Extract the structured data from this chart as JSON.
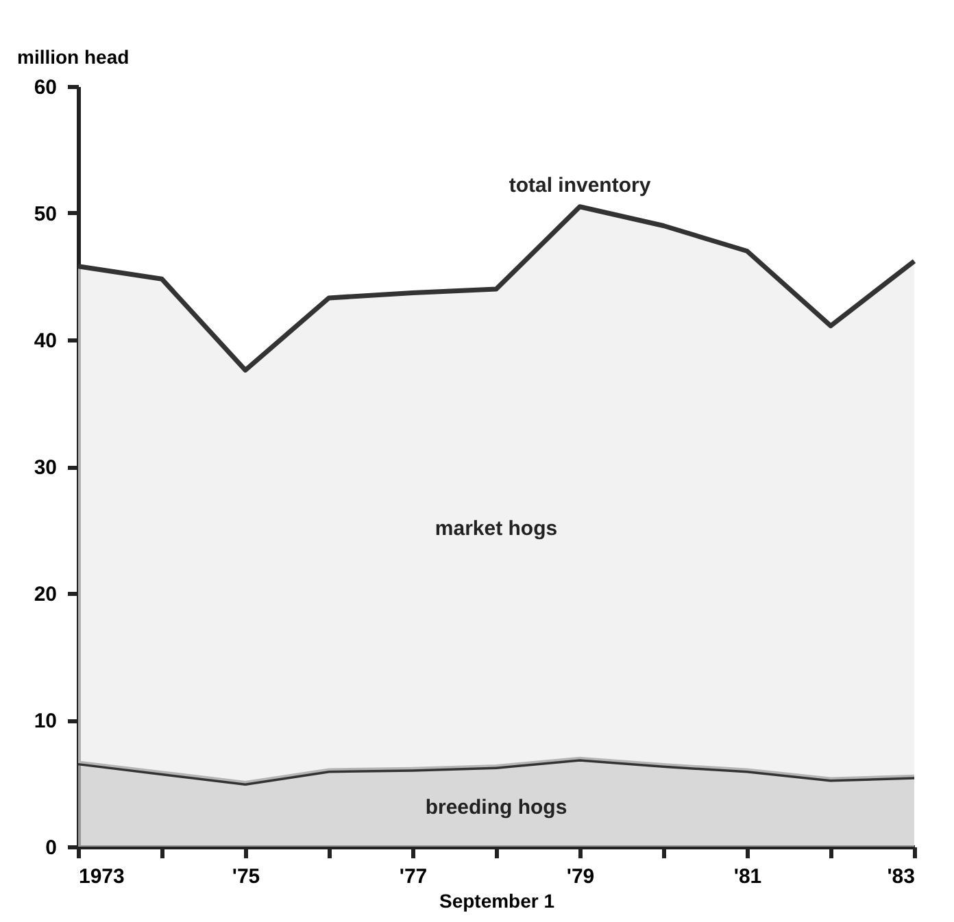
{
  "chart_data": {
    "type": "area",
    "stacked": true,
    "xlabel": "September 1",
    "ylabel": "million head",
    "x": [
      1973,
      1974,
      1975,
      1976,
      1977,
      1978,
      1979,
      1980,
      1981,
      1982,
      1983
    ],
    "series": [
      {
        "name": "breeding hogs",
        "color": "#c8c8c8",
        "values": [
          6.6,
          5.8,
          5.0,
          6.0,
          6.1,
          6.3,
          6.9,
          6.4,
          6.0,
          5.3,
          5.5
        ]
      },
      {
        "name": "market hogs",
        "color": "#ececec",
        "values": [
          39.2,
          39.0,
          32.6,
          37.3,
          37.6,
          37.7,
          43.6,
          42.6,
          41.0,
          35.8,
          40.7
        ]
      }
    ],
    "xlim": [
      1973,
      1983
    ],
    "xticks": [
      {
        "value": 1973,
        "label": "1973"
      },
      {
        "value": 1974,
        "label": null
      },
      {
        "value": 1975,
        "label": "'75"
      },
      {
        "value": 1976,
        "label": null
      },
      {
        "value": 1977,
        "label": "'77"
      },
      {
        "value": 1978,
        "label": null
      },
      {
        "value": 1979,
        "label": "'79"
      },
      {
        "value": 1980,
        "label": null
      },
      {
        "value": 1981,
        "label": "'81"
      },
      {
        "value": 1982,
        "label": null
      },
      {
        "value": 1983,
        "label": "'83"
      }
    ],
    "ylim": [
      0,
      60
    ],
    "yticks": [
      0,
      10,
      20,
      30,
      40,
      50,
      60
    ],
    "annotations": [
      {
        "text": "total inventory",
        "x": 1979,
        "y": 50.5
      }
    ]
  }
}
